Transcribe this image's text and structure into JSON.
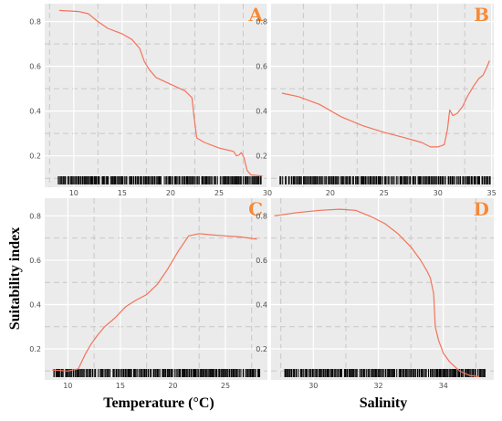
{
  "figure": {
    "ylabel": "Suitability index",
    "xlabel_temperature": "Temperature (°C)",
    "xlabel_salinity": "Salinity"
  },
  "colors": {
    "line": "#f4735a",
    "panel_background": "#ebebeb",
    "major_grid": "#ffffff",
    "minor_grid": "#c8c8c8",
    "letter": "#f58a3a",
    "rug": "#000000"
  },
  "chart_data": [
    {
      "panel": "A",
      "type": "line",
      "letter": "A",
      "xlabel": "",
      "ylabel": "",
      "xlim": [
        7,
        30
      ],
      "ylim": [
        0.06,
        0.88
      ],
      "xticks": [
        10,
        15,
        20,
        25,
        30
      ],
      "yticks": [
        0.2,
        0.4,
        0.6,
        0.8
      ],
      "grid": true,
      "rug_range": [
        8.4,
        29.6
      ],
      "x": [
        8.5,
        10.5,
        11.5,
        12.5,
        13.5,
        15,
        16,
        16.8,
        17.3,
        17.8,
        18.5,
        19.5,
        20.5,
        21.5,
        22.2,
        22.4,
        22.7,
        23.5,
        25,
        26.5,
        26.8,
        27.1,
        27.3,
        27.6,
        27.9,
        28.3,
        29.5
      ],
      "y": [
        0.85,
        0.845,
        0.835,
        0.8,
        0.77,
        0.745,
        0.72,
        0.68,
        0.62,
        0.585,
        0.55,
        0.53,
        0.51,
        0.49,
        0.46,
        0.38,
        0.28,
        0.26,
        0.235,
        0.22,
        0.2,
        0.205,
        0.215,
        0.19,
        0.135,
        0.115,
        0.11
      ]
    },
    {
      "panel": "B",
      "type": "line",
      "letter": "B",
      "xlabel": "",
      "ylabel": "",
      "xlim": [
        14.5,
        35.2
      ],
      "ylim": [
        0.06,
        0.88
      ],
      "xticks": [
        20,
        25,
        30,
        35
      ],
      "yticks": [
        0.2,
        0.4,
        0.6,
        0.8
      ],
      "grid": true,
      "rug_range": [
        15.3,
        34.9
      ],
      "x": [
        15.5,
        17,
        19,
        21,
        23,
        25,
        27,
        28.5,
        29.3,
        30,
        30.6,
        30.9,
        31.1,
        31.4,
        31.8,
        32.3,
        32.8,
        33.3,
        33.8,
        34.2,
        34.5,
        34.8
      ],
      "y": [
        0.48,
        0.465,
        0.43,
        0.375,
        0.335,
        0.305,
        0.28,
        0.26,
        0.24,
        0.24,
        0.25,
        0.32,
        0.405,
        0.38,
        0.39,
        0.42,
        0.47,
        0.51,
        0.545,
        0.56,
        0.59,
        0.625
      ]
    },
    {
      "panel": "C",
      "type": "line",
      "letter": "C",
      "xlabel": "",
      "ylabel": "",
      "xlim": [
        7.8,
        29
      ],
      "ylim": [
        0.06,
        0.88
      ],
      "xticks": [
        10,
        15,
        20,
        25
      ],
      "yticks": [
        0.2,
        0.4,
        0.6,
        0.8
      ],
      "grid": true,
      "rug_range": [
        8.6,
        28.3
      ],
      "x": [
        8.5,
        10,
        11,
        11.7,
        12.2,
        12.8,
        13.5,
        14.5,
        15.5,
        16.5,
        17.5,
        18.5,
        19.5,
        20.5,
        21.5,
        22.5,
        23.5,
        25,
        26.5,
        28
      ],
      "y": [
        0.105,
        0.1,
        0.11,
        0.18,
        0.22,
        0.26,
        0.3,
        0.34,
        0.39,
        0.42,
        0.445,
        0.49,
        0.56,
        0.64,
        0.71,
        0.72,
        0.715,
        0.71,
        0.705,
        0.695
      ]
    },
    {
      "panel": "D",
      "type": "line",
      "letter": "D",
      "xlabel": "",
      "ylabel": "",
      "xlim": [
        28.7,
        35.55
      ],
      "ylim": [
        0.06,
        0.88
      ],
      "xticks": [
        30,
        32,
        34
      ],
      "yticks": [
        0.2,
        0.4,
        0.6,
        0.8
      ],
      "grid": true,
      "rug_range": [
        29.1,
        35.3
      ],
      "x": [
        28.8,
        29.5,
        30.2,
        30.8,
        31.3,
        31.8,
        32.2,
        32.6,
        33,
        33.3,
        33.5,
        33.6,
        33.7,
        33.75,
        33.85,
        34,
        34.2,
        34.5,
        34.8,
        35.1
      ],
      "y": [
        0.8,
        0.815,
        0.825,
        0.83,
        0.825,
        0.795,
        0.765,
        0.72,
        0.66,
        0.6,
        0.55,
        0.52,
        0.45,
        0.3,
        0.24,
        0.18,
        0.14,
        0.1,
        0.08,
        0.075
      ]
    }
  ]
}
